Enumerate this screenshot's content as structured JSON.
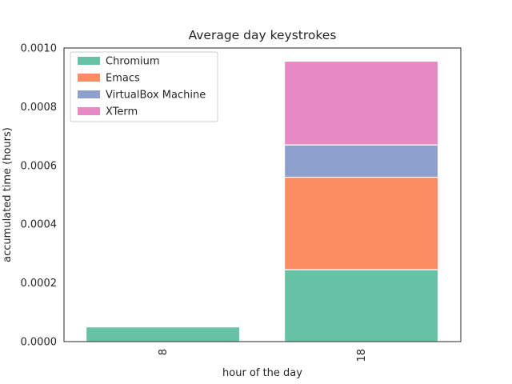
{
  "chart_data": {
    "type": "bar",
    "stacked": true,
    "title": "Average day keystrokes",
    "xlabel": "hour of the day",
    "ylabel": "accumulated time (hours)",
    "categories": [
      "8",
      "18"
    ],
    "ylim": [
      0,
      0.001
    ],
    "yticks": [
      "0.0000",
      "0.0002",
      "0.0004",
      "0.0006",
      "0.0008",
      "0.0010"
    ],
    "ytick_values": [
      0,
      0.0002,
      0.0004,
      0.0006,
      0.0008,
      0.001
    ],
    "legend_position": "top-left",
    "grid": false,
    "series": [
      {
        "name": "Chromium",
        "color": "#66c2a5",
        "values": [
          5e-05,
          0.000245
        ]
      },
      {
        "name": "Emacs",
        "color": "#fc8d62",
        "values": [
          0,
          0.000315
        ]
      },
      {
        "name": "VirtualBox Machine",
        "color": "#8da0cb",
        "values": [
          0,
          0.00011
        ]
      },
      {
        "name": "XTerm",
        "color": "#e78ac3",
        "values": [
          0,
          0.000285
        ]
      }
    ]
  }
}
